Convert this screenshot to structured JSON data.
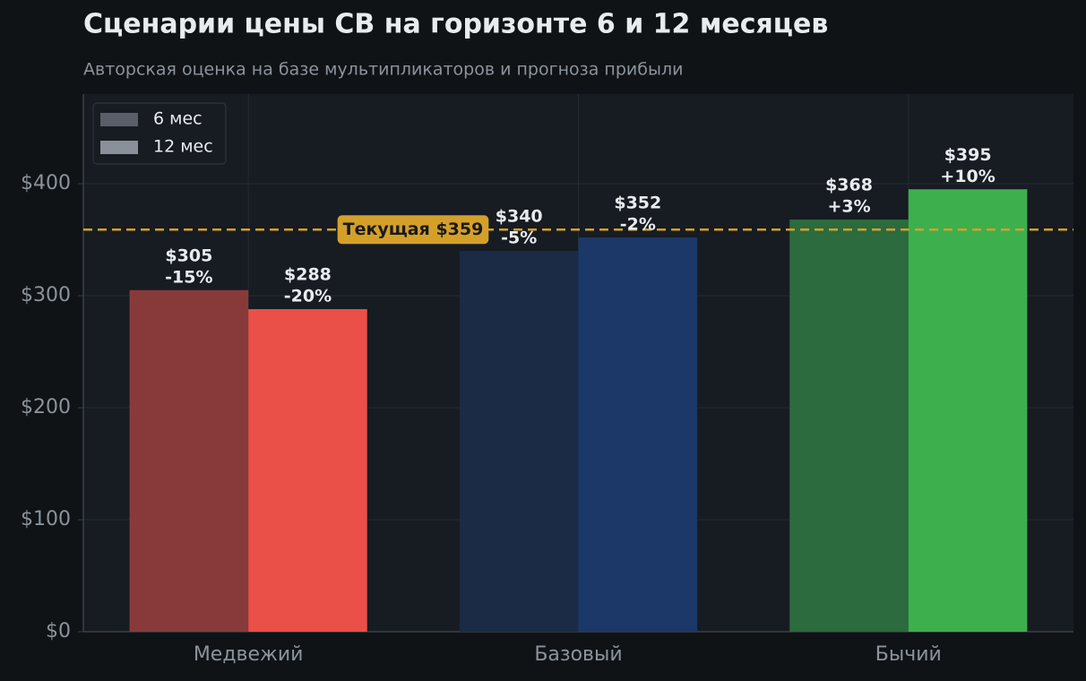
{
  "chart_data": {
    "type": "bar",
    "title": "Сценарии цены CB на горизонте 6 и 12 месяцев",
    "subtitle": "Авторская оценка на базе мультипликаторов и прогноза прибыли",
    "categories": [
      "Медвежий",
      "Базовый",
      "Бычий"
    ],
    "series": [
      {
        "name": "6 мес",
        "color": "#5a5e68",
        "colors": [
          "#883a3a",
          "#1b2a45",
          "#2b6b3d"
        ],
        "values": [
          305,
          340,
          368
        ],
        "value_labels": [
          "$305",
          "$340",
          "$368"
        ],
        "change_labels": [
          "-15%",
          "-5%",
          "+3%"
        ]
      },
      {
        "name": "12 мес",
        "color": "#8a9099",
        "colors": [
          "#ea4f48",
          "#1b3868",
          "#3daf4d"
        ],
        "values": [
          288,
          352,
          395
        ],
        "value_labels": [
          "$288",
          "$352",
          "$395"
        ],
        "change_labels": [
          "-20%",
          "-2%",
          "+10%"
        ]
      }
    ],
    "reference_line": {
      "value": 359,
      "label": "Текущая $359",
      "color": "#d4a02a"
    },
    "ylim": [
      0,
      480
    ],
    "yticks": [
      {
        "value": 0,
        "label": "$0"
      },
      {
        "value": 100,
        "label": "$100"
      },
      {
        "value": 200,
        "label": "$200"
      },
      {
        "value": 300,
        "label": "$300"
      },
      {
        "value": 400,
        "label": "$400"
      }
    ],
    "grid": true,
    "legend": "upper left"
  }
}
